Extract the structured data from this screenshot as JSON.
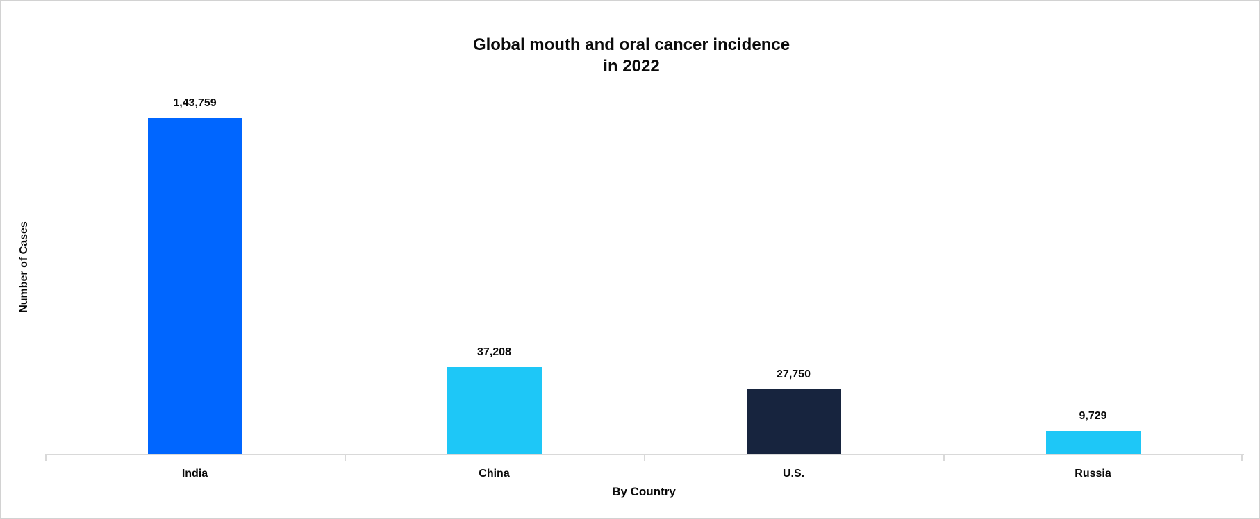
{
  "page": {
    "background": "#FFFFFF",
    "border_color": "#D2D2D2"
  },
  "chart_data": {
    "type": "bar",
    "title": "Global mouth and oral cancer incidence",
    "title_line2": "in 2022",
    "xlabel": "By Country",
    "ylabel": "Number of Cases",
    "categories": [
      "India",
      "China",
      "U.S.",
      "Russia"
    ],
    "values": [
      143759,
      37208,
      27750,
      9729
    ],
    "value_labels": [
      "1,43,759",
      "37,208",
      "27,750",
      "9,729"
    ],
    "bar_colors": [
      "#0066FF",
      "#1EC7F7",
      "#17243E",
      "#1EC7F7"
    ],
    "axis_color": "#D9D9D9",
    "text_color": "#0A0A0A",
    "ylim": [
      0,
      150000
    ],
    "grid": false,
    "legend": false
  }
}
